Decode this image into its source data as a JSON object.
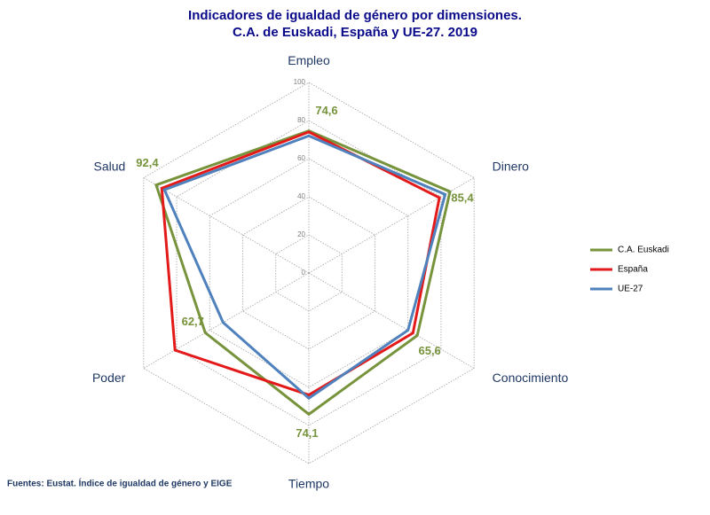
{
  "chart_data": {
    "type": "radar",
    "title": "Indicadores de igualdad de género por dimensiones.",
    "subtitle": "C.A. de Euskadi, España y UE-27. 2019",
    "source": "Fuentes: Eustat. Índice de igualdad de género y EIGE",
    "categories": [
      "Empleo",
      "Dinero",
      "Conocimiento",
      "Tiempo",
      "Poder",
      "Salud"
    ],
    "ylim": [
      0,
      100
    ],
    "yticks": [
      0,
      20,
      40,
      60,
      80,
      100
    ],
    "grid": true,
    "legend": "right",
    "series": [
      {
        "name": "C.A. Euskadi",
        "color": "#77933c",
        "values": [
          74.6,
          85.4,
          65.6,
          74.1,
          62.7,
          92.4
        ],
        "value_labels": [
          "74,6",
          "85,4",
          "65,6",
          "74,1",
          "62,7",
          "92,4"
        ]
      },
      {
        "name": "España",
        "color": "#e41a1a",
        "values": [
          74,
          79,
          63,
          64,
          81,
          89
        ]
      },
      {
        "name": "UE-27",
        "color": "#4f81bd",
        "values": [
          72,
          82.5,
          60,
          65.7,
          51.9,
          87.4
        ]
      }
    ]
  }
}
